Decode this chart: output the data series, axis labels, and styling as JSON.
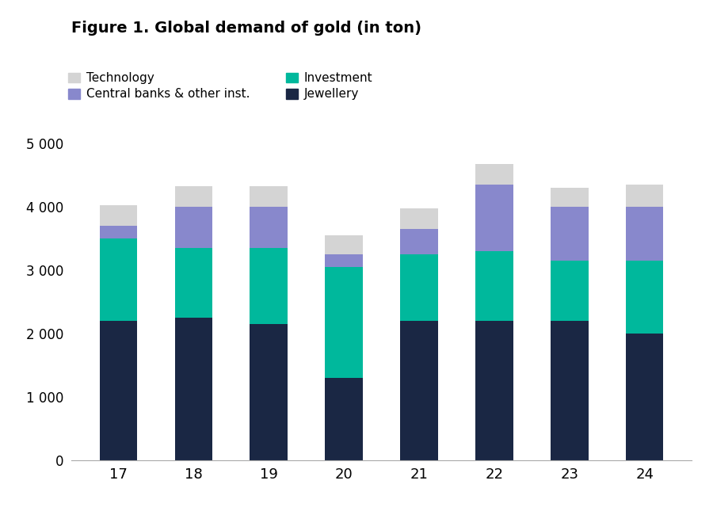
{
  "title": "Figure 1. Global demand of gold (in ton)",
  "years": [
    "17",
    "18",
    "19",
    "20",
    "21",
    "22",
    "23",
    "24"
  ],
  "jewellery": [
    2200,
    2250,
    2150,
    1300,
    2200,
    2200,
    2200,
    2000
  ],
  "investment": [
    1300,
    1100,
    1200,
    1750,
    1050,
    1100,
    950,
    1150
  ],
  "central_banks": [
    200,
    650,
    650,
    200,
    400,
    1050,
    850,
    850
  ],
  "technology": [
    320,
    320,
    320,
    300,
    320,
    320,
    300,
    350
  ],
  "colors": {
    "jewellery": "#1a2744",
    "investment": "#00b89c",
    "central_banks": "#8888cc",
    "technology": "#d4d4d4"
  },
  "legend_labels": {
    "technology": "Technology",
    "central_banks": "Central banks & other inst.",
    "investment": "Investment",
    "jewellery": "Jewellery"
  },
  "ylim": [
    0,
    5000
  ],
  "yticks": [
    0,
    1000,
    2000,
    3000,
    4000,
    5000
  ],
  "background_color": "#ffffff",
  "bar_width": 0.5
}
